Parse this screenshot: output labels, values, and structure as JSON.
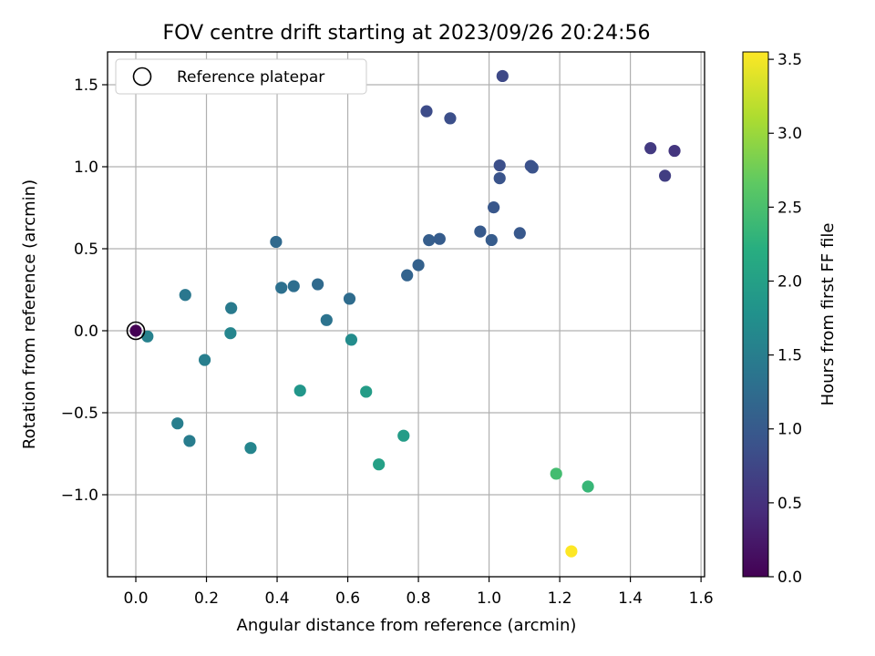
{
  "chart_data": {
    "type": "scatter",
    "title": "FOV centre drift starting at 2023/09/26 20:24:56",
    "xlabel": "Angular distance from reference (arcmin)",
    "ylabel": "Rotation from reference (arcmin)",
    "xlim": [
      -0.08,
      1.61
    ],
    "ylim": [
      -1.5,
      1.7
    ],
    "xticks": [
      0.0,
      0.2,
      0.4,
      0.6,
      0.8,
      1.0,
      1.2,
      1.4,
      1.6
    ],
    "xtick_labels": [
      "0.0",
      "0.2",
      "0.4",
      "0.6",
      "0.8",
      "1.0",
      "1.2",
      "1.4",
      "1.6"
    ],
    "yticks": [
      -1.0,
      -0.5,
      0.0,
      0.5,
      1.0,
      1.5
    ],
    "ytick_labels": [
      "−1.0",
      "−0.5",
      "0.0",
      "0.5",
      "1.0",
      "1.5"
    ],
    "grid": true,
    "legend": {
      "placement": "top-left",
      "entries": [
        "Reference platepar"
      ]
    },
    "reference_point": {
      "x": 0.0,
      "y": 0.0
    },
    "colorbar": {
      "label": "Hours from first FF file",
      "range": [
        0.0,
        3.55
      ],
      "colormap": "viridis",
      "ticks": [
        0.0,
        0.5,
        1.0,
        1.5,
        2.0,
        2.5,
        3.0,
        3.5
      ],
      "tick_labels": [
        "0.0",
        "0.5",
        "1.0",
        "1.5",
        "2.0",
        "2.5",
        "3.0",
        "3.5"
      ]
    },
    "points": [
      {
        "x": 0.0,
        "y": 0.0,
        "hours": 0.0
      },
      {
        "x": 1.038,
        "y": 1.553,
        "hours": 0.78
      },
      {
        "x": 0.823,
        "y": 1.338,
        "hours": 0.82
      },
      {
        "x": 0.89,
        "y": 1.295,
        "hours": 0.85
      },
      {
        "x": 1.457,
        "y": 1.113,
        "hours": 0.6
      },
      {
        "x": 1.525,
        "y": 1.097,
        "hours": 0.55
      },
      {
        "x": 1.498,
        "y": 0.945,
        "hours": 0.65
      },
      {
        "x": 1.03,
        "y": 1.008,
        "hours": 0.85
      },
      {
        "x": 1.118,
        "y": 1.005,
        "hours": 0.88
      },
      {
        "x": 1.123,
        "y": 0.995,
        "hours": 0.9
      },
      {
        "x": 1.03,
        "y": 0.93,
        "hours": 0.92
      },
      {
        "x": 1.013,
        "y": 0.752,
        "hours": 0.95
      },
      {
        "x": 0.975,
        "y": 0.605,
        "hours": 1.0
      },
      {
        "x": 1.087,
        "y": 0.595,
        "hours": 0.97
      },
      {
        "x": 1.007,
        "y": 0.553,
        "hours": 1.02
      },
      {
        "x": 0.83,
        "y": 0.552,
        "hours": 1.05
      },
      {
        "x": 0.86,
        "y": 0.56,
        "hours": 1.03
      },
      {
        "x": 0.8,
        "y": 0.4,
        "hours": 1.1
      },
      {
        "x": 0.768,
        "y": 0.338,
        "hours": 1.13
      },
      {
        "x": 0.397,
        "y": 0.542,
        "hours": 1.2
      },
      {
        "x": 0.515,
        "y": 0.283,
        "hours": 1.22
      },
      {
        "x": 0.447,
        "y": 0.272,
        "hours": 1.27
      },
      {
        "x": 0.412,
        "y": 0.262,
        "hours": 1.3
      },
      {
        "x": 0.605,
        "y": 0.195,
        "hours": 1.25
      },
      {
        "x": 0.54,
        "y": 0.065,
        "hours": 1.35
      },
      {
        "x": 0.27,
        "y": 0.138,
        "hours": 1.45
      },
      {
        "x": 0.14,
        "y": 0.218,
        "hours": 1.4
      },
      {
        "x": 0.268,
        "y": -0.015,
        "hours": 1.6
      },
      {
        "x": 0.61,
        "y": -0.055,
        "hours": 1.7
      },
      {
        "x": 0.033,
        "y": -0.035,
        "hours": 1.55
      },
      {
        "x": 0.195,
        "y": -0.178,
        "hours": 1.5
      },
      {
        "x": 0.465,
        "y": -0.365,
        "hours": 1.85
      },
      {
        "x": 0.652,
        "y": -0.372,
        "hours": 1.95
      },
      {
        "x": 0.118,
        "y": -0.565,
        "hours": 1.5
      },
      {
        "x": 0.152,
        "y": -0.672,
        "hours": 1.48
      },
      {
        "x": 0.325,
        "y": -0.715,
        "hours": 1.6
      },
      {
        "x": 0.758,
        "y": -0.64,
        "hours": 1.95
      },
      {
        "x": 0.688,
        "y": -0.815,
        "hours": 2.0
      },
      {
        "x": 1.19,
        "y": -0.872,
        "hours": 2.45
      },
      {
        "x": 1.28,
        "y": -0.95,
        "hours": 2.35
      },
      {
        "x": 1.233,
        "y": -1.345,
        "hours": 3.55
      }
    ]
  }
}
